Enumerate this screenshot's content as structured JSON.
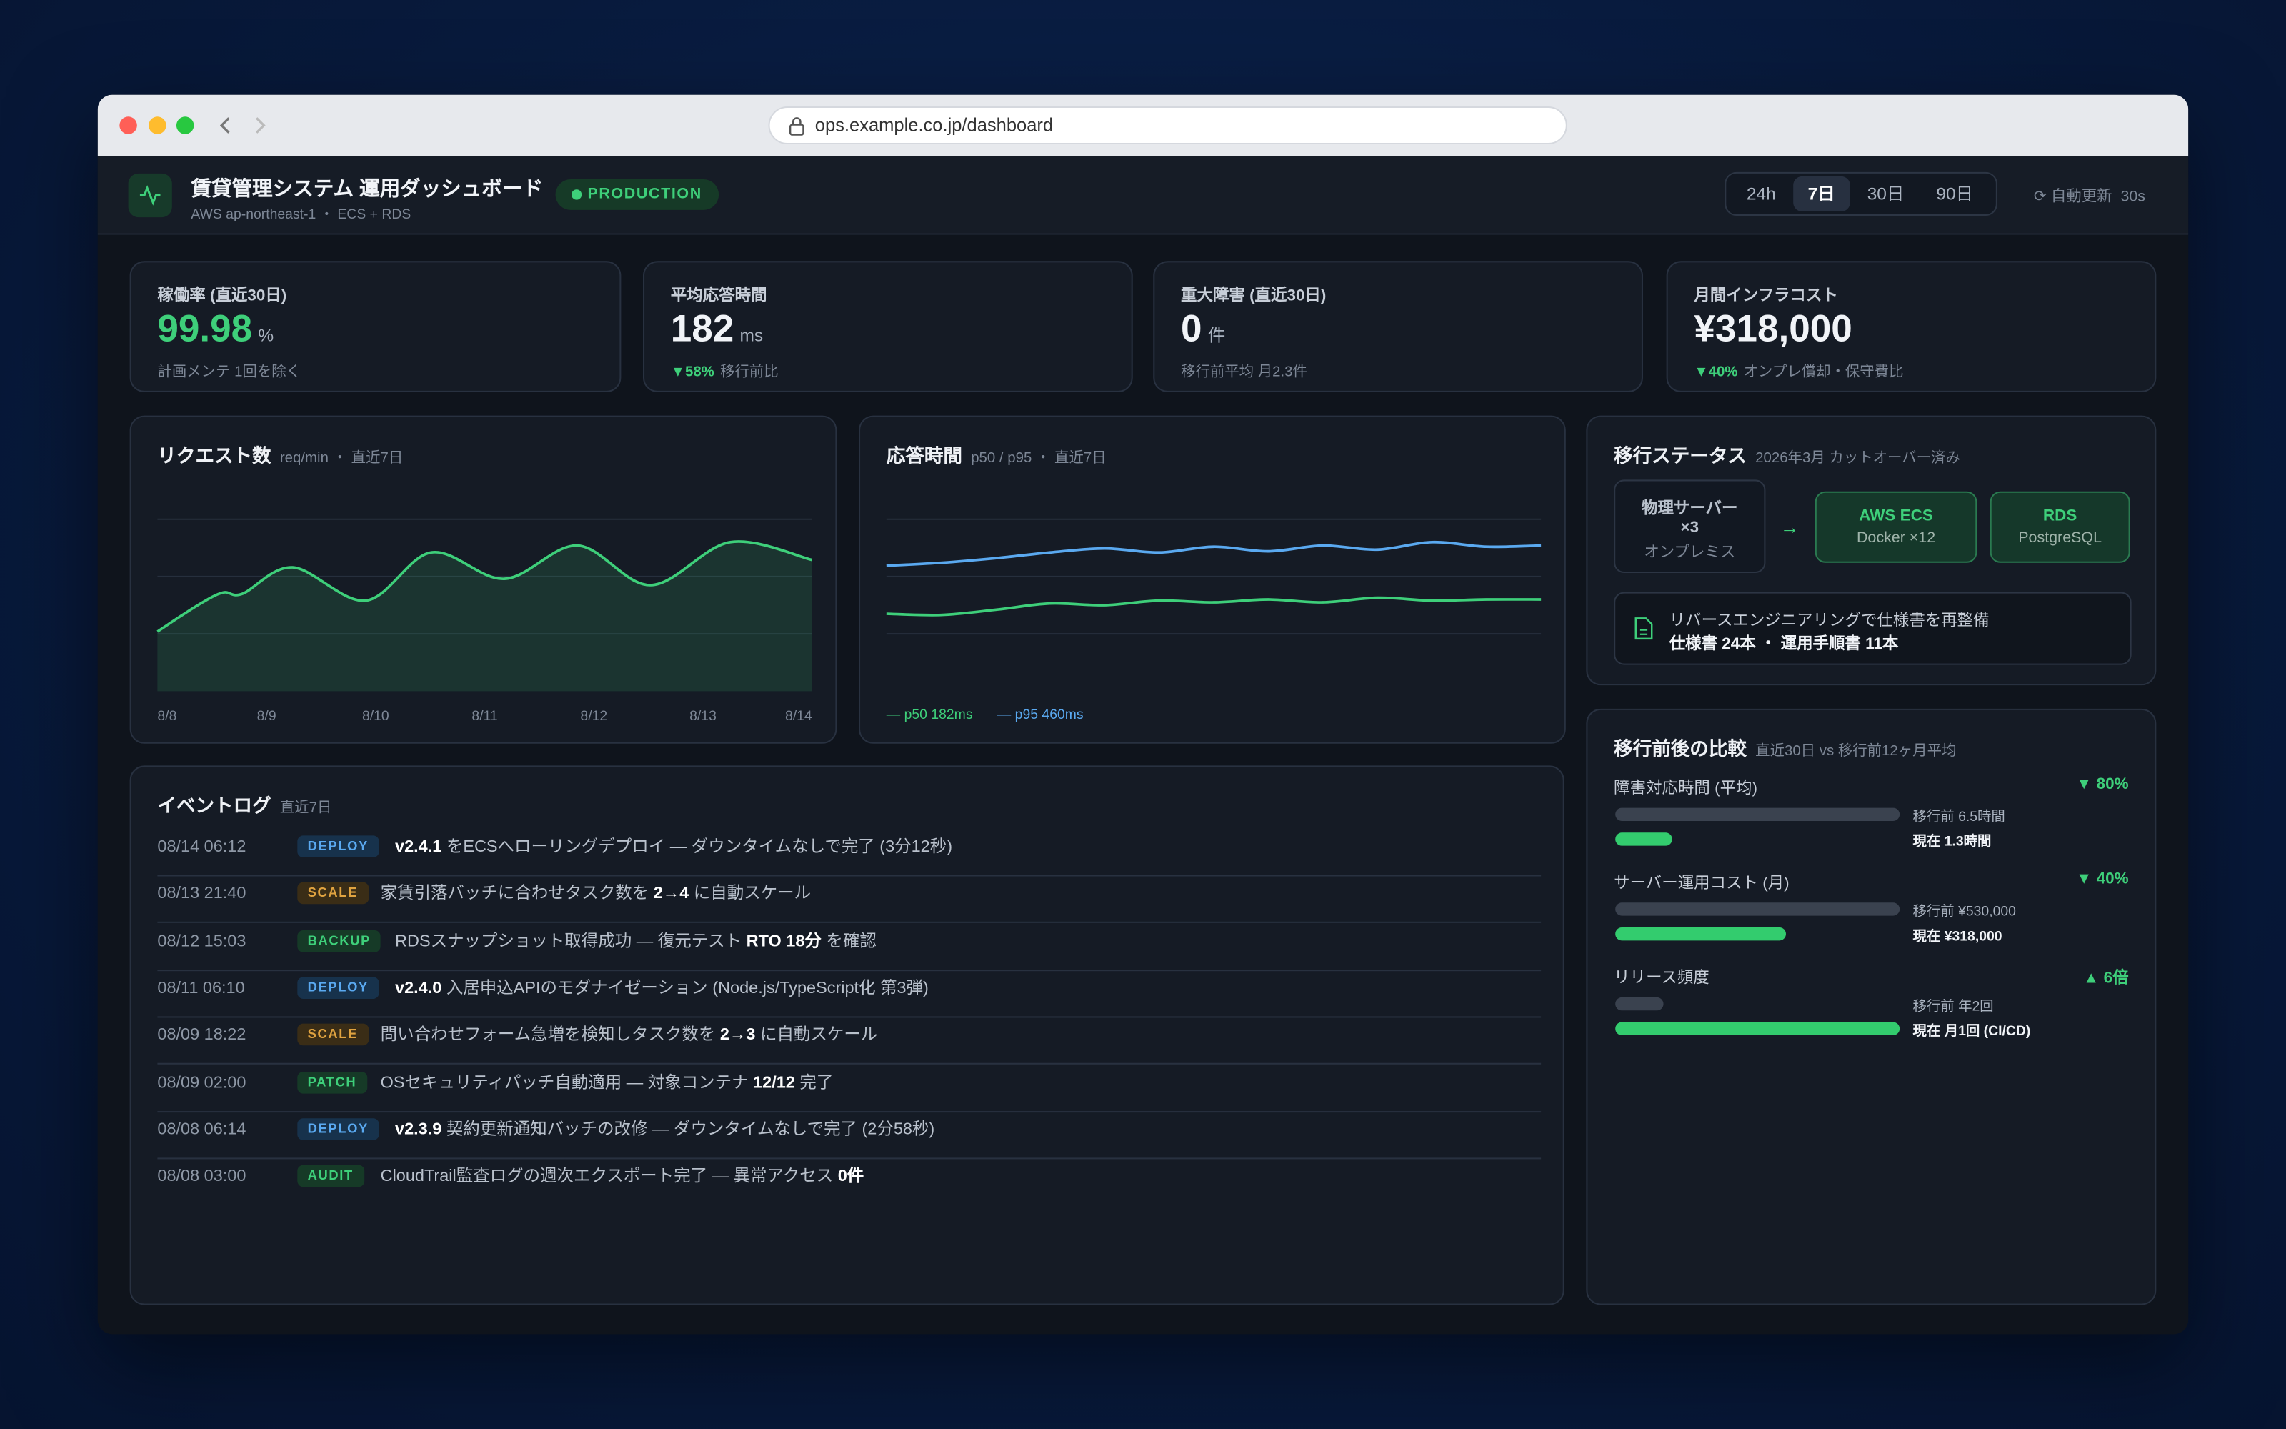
{
  "browser": {
    "url": "ops.example.co.jp/dashboard"
  },
  "header": {
    "title": "賃貸管理システム 運用ダッシュボード",
    "subtitle": "AWS ap-northeast-1 ・ ECS + RDS",
    "env": "PRODUCTION",
    "ranges": [
      "24h",
      "7日",
      "30日",
      "90日"
    ],
    "active_range": 1,
    "refresh": "自動更新",
    "refresh_interval": "30s"
  },
  "kpis": [
    {
      "label": "稼働率 (直近30日)",
      "value": "99.98",
      "unit": "%",
      "note": "計画メンテ 1回を除く",
      "color": "#3ecf7a"
    },
    {
      "label": "平均応答時間",
      "value": "182",
      "unit": "ms",
      "delta": "▼58%",
      "note": "移行前比",
      "color": "#f1f4f8"
    },
    {
      "label": "重大障害 (直近30日)",
      "value": "0",
      "unit": "件",
      "note": "移行前平均 月2.3件",
      "color": "#f1f4f8"
    },
    {
      "label": "月間インフラコスト",
      "value": "¥318,000",
      "delta": "▼40%",
      "note": "オンプレ償却・保守費比",
      "color": "#f1f4f8"
    }
  ],
  "chart_data": [
    {
      "type": "area",
      "title": "リクエスト数",
      "subtitle": "req/min ・ 直近7日",
      "x": [
        0,
        0.37,
        0.6,
        0.78,
        1.24,
        1.91,
        2.51,
        3.18,
        3.85,
        4.52,
        5.25,
        6
      ],
      "series": [
        {
          "name": "requests",
          "color": "#3ecf7a",
          "values": [
            1.04,
            1.5,
            1.72,
            1.7,
            2.16,
            1.58,
            2.42,
            1.96,
            2.54,
            1.85,
            2.6,
            2.29
          ]
        }
      ],
      "xlim": [
        0,
        6
      ],
      "xticks": [
        {
          "value": 0,
          "label": "8/8"
        },
        {
          "value": 1,
          "label": "8/9"
        },
        {
          "value": 2,
          "label": "8/10"
        },
        {
          "value": 3,
          "label": "8/11"
        },
        {
          "value": 4,
          "label": "8/12"
        },
        {
          "value": 5,
          "label": "8/13"
        },
        {
          "value": 6,
          "label": "8/14"
        }
      ],
      "ylim": [
        0,
        3
      ],
      "yticks": [
        1,
        2,
        3
      ],
      "grid": true
    },
    {
      "type": "line",
      "title": "応答時間",
      "subtitle": "p50 / p95 ・ 直近7日",
      "x": [
        0,
        0.5,
        1,
        1.5,
        2,
        2.5,
        3,
        3.5,
        4,
        4.5,
        5,
        5.5,
        6
      ],
      "series": [
        {
          "name": "p50 182ms",
          "color": "#3ecf7a",
          "values": [
            1.35,
            1.33,
            1.42,
            1.53,
            1.5,
            1.58,
            1.55,
            1.6,
            1.55,
            1.63,
            1.58,
            1.6,
            1.6
          ]
        },
        {
          "name": "p95 460ms",
          "color": "#5aa9f0",
          "values": [
            2.19,
            2.24,
            2.32,
            2.42,
            2.49,
            2.42,
            2.52,
            2.44,
            2.54,
            2.47,
            2.6,
            2.52,
            2.54
          ]
        }
      ],
      "xlim": [
        0,
        6
      ],
      "ylim": [
        0,
        3
      ],
      "yticks": [
        1,
        2,
        3
      ],
      "grid": true
    }
  ],
  "migration": {
    "title": "移行ステータス",
    "subtitle": "2026年3月 カットオーバー済み",
    "source": {
      "title": "物理サーバー ×3",
      "sub": "オンプレミス"
    },
    "arrow": "→",
    "targets": [
      {
        "title": "AWS ECS",
        "sub": "Docker ×12"
      },
      {
        "title": "RDS",
        "sub": "PostgreSQL"
      }
    ],
    "doc_note": "リバースエンジニアリングで仕様書を再整備",
    "doc_detail": "仕様書 24本 ・ 運用手順書 11本"
  },
  "comparison": {
    "title": "移行前後の比較",
    "subtitle": "直近30日 vs 移行前12ヶ月平均",
    "items": [
      {
        "label": "障害対応時間 (平均)",
        "change": "▼ 80%",
        "before_label": "移行前 6.5時間",
        "after_label": "現在 1.3時間",
        "values": [
          6.5,
          1.3
        ],
        "xlim": [
          0,
          6.5
        ]
      },
      {
        "label": "サーバー運用コスト (月)",
        "change": "▼ 40%",
        "before_label": "移行前 ¥530,000",
        "after_label": "現在 ¥318,000",
        "values": [
          530000,
          318000
        ],
        "xlim": [
          0,
          530000
        ]
      },
      {
        "label": "リリース頻度",
        "change": "▲ 6倍",
        "before_label": "移行前 年2回",
        "after_label": "現在 月1回 (CI/CD)",
        "values": [
          2,
          12
        ],
        "xlim": [
          0,
          12
        ]
      }
    ]
  },
  "events": {
    "title": "イベントログ",
    "subtitle": "直近7日",
    "rows": [
      {
        "time": "08/14 06:12",
        "tag": "DEPLOY",
        "tag_color": "#5aa9f0",
        "tag_bg": "#17324c",
        "parts": [
          {
            "t": "v2.4.1",
            "b": true
          },
          {
            "t": " をECSへローリングデプロイ — ダウンタイムなしで完了 (3分12秒)"
          }
        ]
      },
      {
        "time": "08/13 21:40",
        "tag": "SCALE",
        "tag_color": "#e0a340",
        "tag_bg": "#3a2d16",
        "parts": [
          {
            "t": "家賃引落バッチに合わせタスク数を "
          },
          {
            "t": "2→4",
            "b": true
          },
          {
            "t": " に自動スケール"
          }
        ]
      },
      {
        "time": "08/12 15:03",
        "tag": "BACKUP",
        "tag_color": "#3ecf7a",
        "tag_bg": "#163a27",
        "parts": [
          {
            "t": "RDSスナップショット取得成功 — 復元テスト "
          },
          {
            "t": "RTO 18分",
            "b": true
          },
          {
            "t": " を確認"
          }
        ]
      },
      {
        "time": "08/11 06:10",
        "tag": "DEPLOY",
        "tag_color": "#5aa9f0",
        "tag_bg": "#17324c",
        "parts": [
          {
            "t": "v2.4.0",
            "b": true
          },
          {
            "t": " 入居申込APIのモダナイゼーション (Node.js/TypeScript化 第3弾)"
          }
        ]
      },
      {
        "time": "08/09 18:22",
        "tag": "SCALE",
        "tag_color": "#e0a340",
        "tag_bg": "#3a2d16",
        "parts": [
          {
            "t": "問い合わせフォーム急増を検知しタスク数を "
          },
          {
            "t": "2→3",
            "b": true
          },
          {
            "t": " に自動スケール"
          }
        ]
      },
      {
        "time": "08/09 02:00",
        "tag": "PATCH",
        "tag_color": "#3ecf7a",
        "tag_bg": "#163a27",
        "parts": [
          {
            "t": "OSセキュリティパッチ自動適用 — 対象コンテナ "
          },
          {
            "t": "12/12",
            "b": true
          },
          {
            "t": " 完了"
          }
        ]
      },
      {
        "time": "08/08 06:14",
        "tag": "DEPLOY",
        "tag_color": "#5aa9f0",
        "tag_bg": "#17324c",
        "parts": [
          {
            "t": "v2.3.9",
            "b": true
          },
          {
            "t": " 契約更新通知バッチの改修 — ダウンタイムなしで完了 (2分58秒)"
          }
        ]
      },
      {
        "time": "08/08 03:00",
        "tag": "AUDIT",
        "tag_color": "#3ecf7a",
        "tag_bg": "#163a27",
        "parts": [
          {
            "t": "CloudTrail監査ログの週次エクスポート完了 — 異常アクセス "
          },
          {
            "t": "0件",
            "b": true
          }
        ]
      }
    ]
  }
}
